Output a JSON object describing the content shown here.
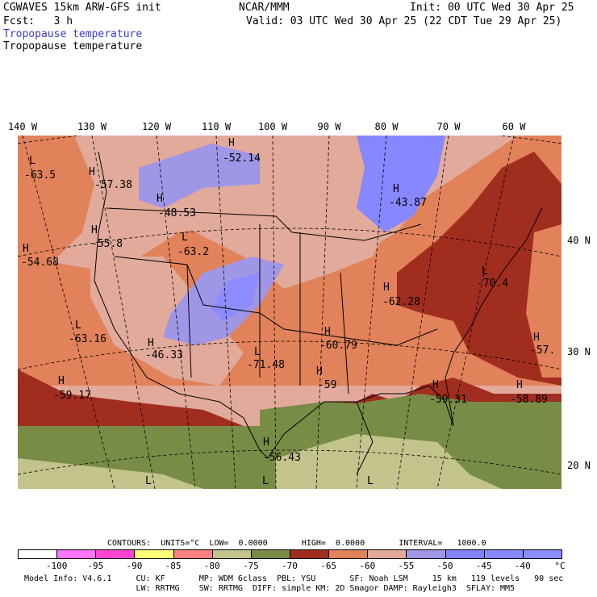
{
  "header": {
    "model_title": "CGWAVES 15km ARW-GFS init",
    "org": "NCAR/MMM",
    "init": "Init: 00 UTC Wed 30 Apr 25",
    "forecast": "Fcst:   3 h",
    "valid": "Valid: 03 UTC Wed 30 Apr 25 (22 CDT Tue 29 Apr 25)",
    "field_title_1": "Tropopause temperature",
    "field_title_2": "Tropopause temperature",
    "field_title_1_color": "#3a3ad0"
  },
  "longitudes": [
    "140 W",
    "130 W",
    "120 W",
    "110 W",
    "100 W",
    "90 W",
    "80 W",
    "70 W",
    "60 W"
  ],
  "latitudes": [
    "40 N",
    "30 N",
    "20 N"
  ],
  "map_labels": [
    {
      "hl": "L",
      "value": "-63.5"
    },
    {
      "hl": "H",
      "value": "-57.38"
    },
    {
      "hl": "H",
      "value": "-52.14"
    },
    {
      "hl": "H",
      "value": "-48.53"
    },
    {
      "hl": "H",
      "value": "-43.87"
    },
    {
      "hl": "H",
      "value": "-55.8"
    },
    {
      "hl": "H",
      "value": "-54.68"
    },
    {
      "hl": "L",
      "value": "-63.2"
    },
    {
      "hl": "L",
      "value": "-70.4"
    },
    {
      "hl": "H",
      "value": "-62.28"
    },
    {
      "hl": "L",
      "value": "-63.16"
    },
    {
      "hl": "H",
      "value": "-46.33"
    },
    {
      "hl": "L",
      "value": "-71.48"
    },
    {
      "hl": "H",
      "value": "-60.79"
    },
    {
      "hl": "H",
      "value": "-57."
    },
    {
      "hl": "H",
      "value": "-59.17"
    },
    {
      "hl": "H",
      "value": "-59.31"
    },
    {
      "hl": "H",
      "value": "-58.89"
    },
    {
      "hl": "H",
      "value": "-59"
    },
    {
      "hl": "H",
      "value": "-56.43"
    },
    {
      "hl": "L",
      "value": ""
    },
    {
      "hl": "L",
      "value": ""
    },
    {
      "hl": "L",
      "value": ""
    }
  ],
  "contours_line": "CONTOURS:  UNITS=°C  LOW=  0.0000       HIGH=  0.0000       INTERVAL=   1000.0",
  "legend": {
    "colors": [
      "#ffffff",
      "#ff73ff",
      "#ff46d2",
      "#ffff78",
      "#ff8282",
      "#c3c38c",
      "#788c46",
      "#a02d1e",
      "#e1825a",
      "#e1aa9b",
      "#a096e6",
      "#8282fa",
      "#8787ff",
      "#8c8cff"
    ],
    "ticks": [
      "-100",
      "-95",
      "-90",
      "-85",
      "-80",
      "-75",
      "-70",
      "-65",
      "-60",
      "-55",
      "-50",
      "-45",
      "-40"
    ],
    "unit": "°C"
  },
  "footer": {
    "line1": "Model Info: V4.6.1     CU: KF       MP: WDM 6class  PBL: YSU       SF: Noah LSM     15 km   119 levels   90 sec",
    "line2": "                       LW: RRTMG    SW: RRTMG  DIFF: simple KM: 2D Smagor DAMP: Rayleigh3  SFLAY: MM5"
  }
}
